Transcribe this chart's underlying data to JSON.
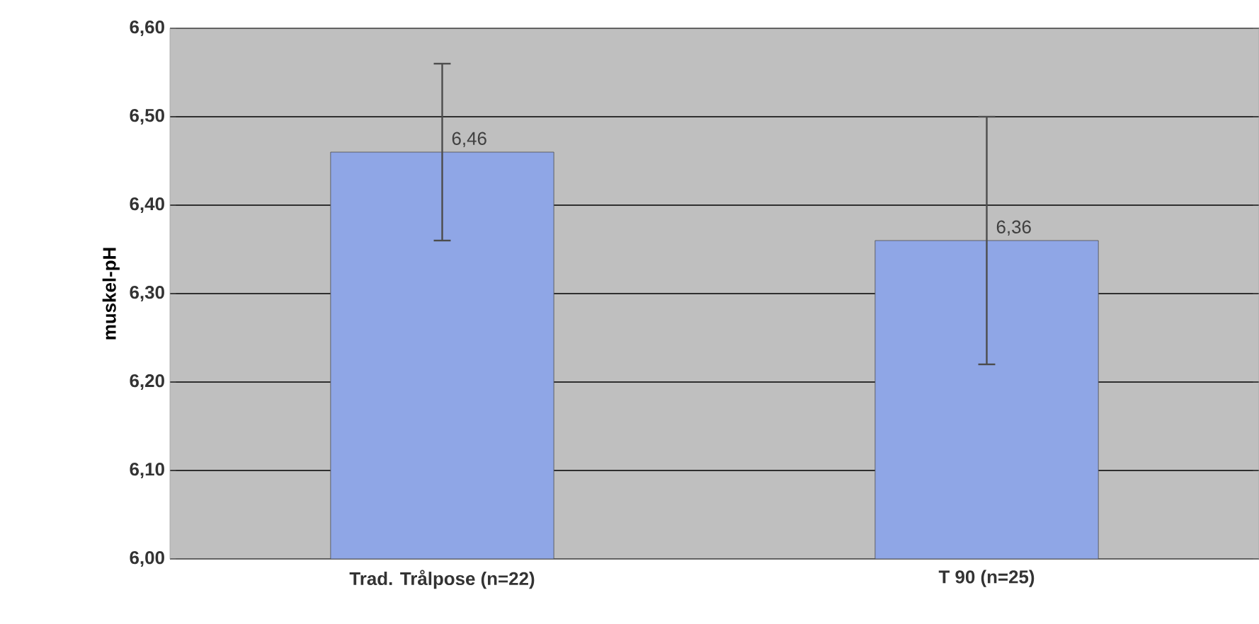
{
  "chart_data": {
    "type": "bar",
    "ylabel": "muskel-pH",
    "categories": [
      "Trad. Trålpose (n=22)",
      "T 90 (n=25)"
    ],
    "values": [
      6.46,
      6.36
    ],
    "errors": [
      0.1,
      0.14
    ],
    "value_labels": [
      "6,46",
      "6,36"
    ],
    "color": "#8fa6e6",
    "ylim": [
      6.0,
      6.6
    ],
    "yticks": [
      {
        "value": 6.0,
        "label": "6,00"
      },
      {
        "value": 6.1,
        "label": "6,10"
      },
      {
        "value": 6.2,
        "label": "6,20"
      },
      {
        "value": 6.3,
        "label": "6,30"
      },
      {
        "value": 6.4,
        "label": "6,40"
      },
      {
        "value": 6.5,
        "label": "6,50"
      },
      {
        "value": 6.6,
        "label": "6,60"
      }
    ],
    "grid": "y"
  }
}
